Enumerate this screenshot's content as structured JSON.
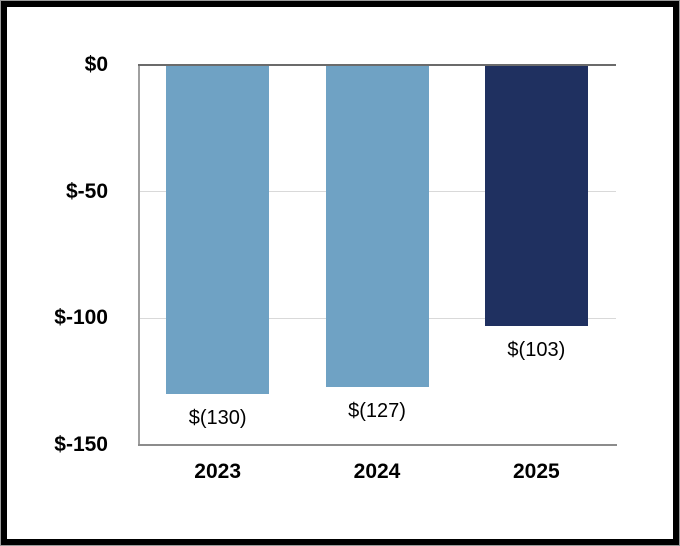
{
  "chart_data": {
    "type": "bar",
    "title": "",
    "xlabel": "",
    "ylabel": "",
    "categories": [
      "2023",
      "2024",
      "2025"
    ],
    "values": [
      -130,
      -127,
      -103
    ],
    "data_labels": [
      "$(130)",
      "$(127)",
      "$(103)"
    ],
    "bar_colors": [
      "#6FA2C4",
      "#6FA2C4",
      "#1F3060"
    ],
    "y_ticks": [
      0,
      -50,
      -100,
      -150
    ],
    "y_tick_labels": [
      "$0",
      "$-50",
      "$-100",
      "$-150"
    ],
    "ylim": [
      -150,
      0
    ],
    "grid": true,
    "legend": "none"
  },
  "colors": {
    "bar_light_blue": "#6FA2C4",
    "bar_navy": "#1F3060",
    "zero_axis_line": "#6B6B6B",
    "bottom_axis_line": "#8C8C8C",
    "left_axis_line": "#A0A0A0",
    "gridline": "#D9D9D9",
    "label_text": "#000000",
    "frame_border": "#000000",
    "background": "#FFFFFF"
  }
}
